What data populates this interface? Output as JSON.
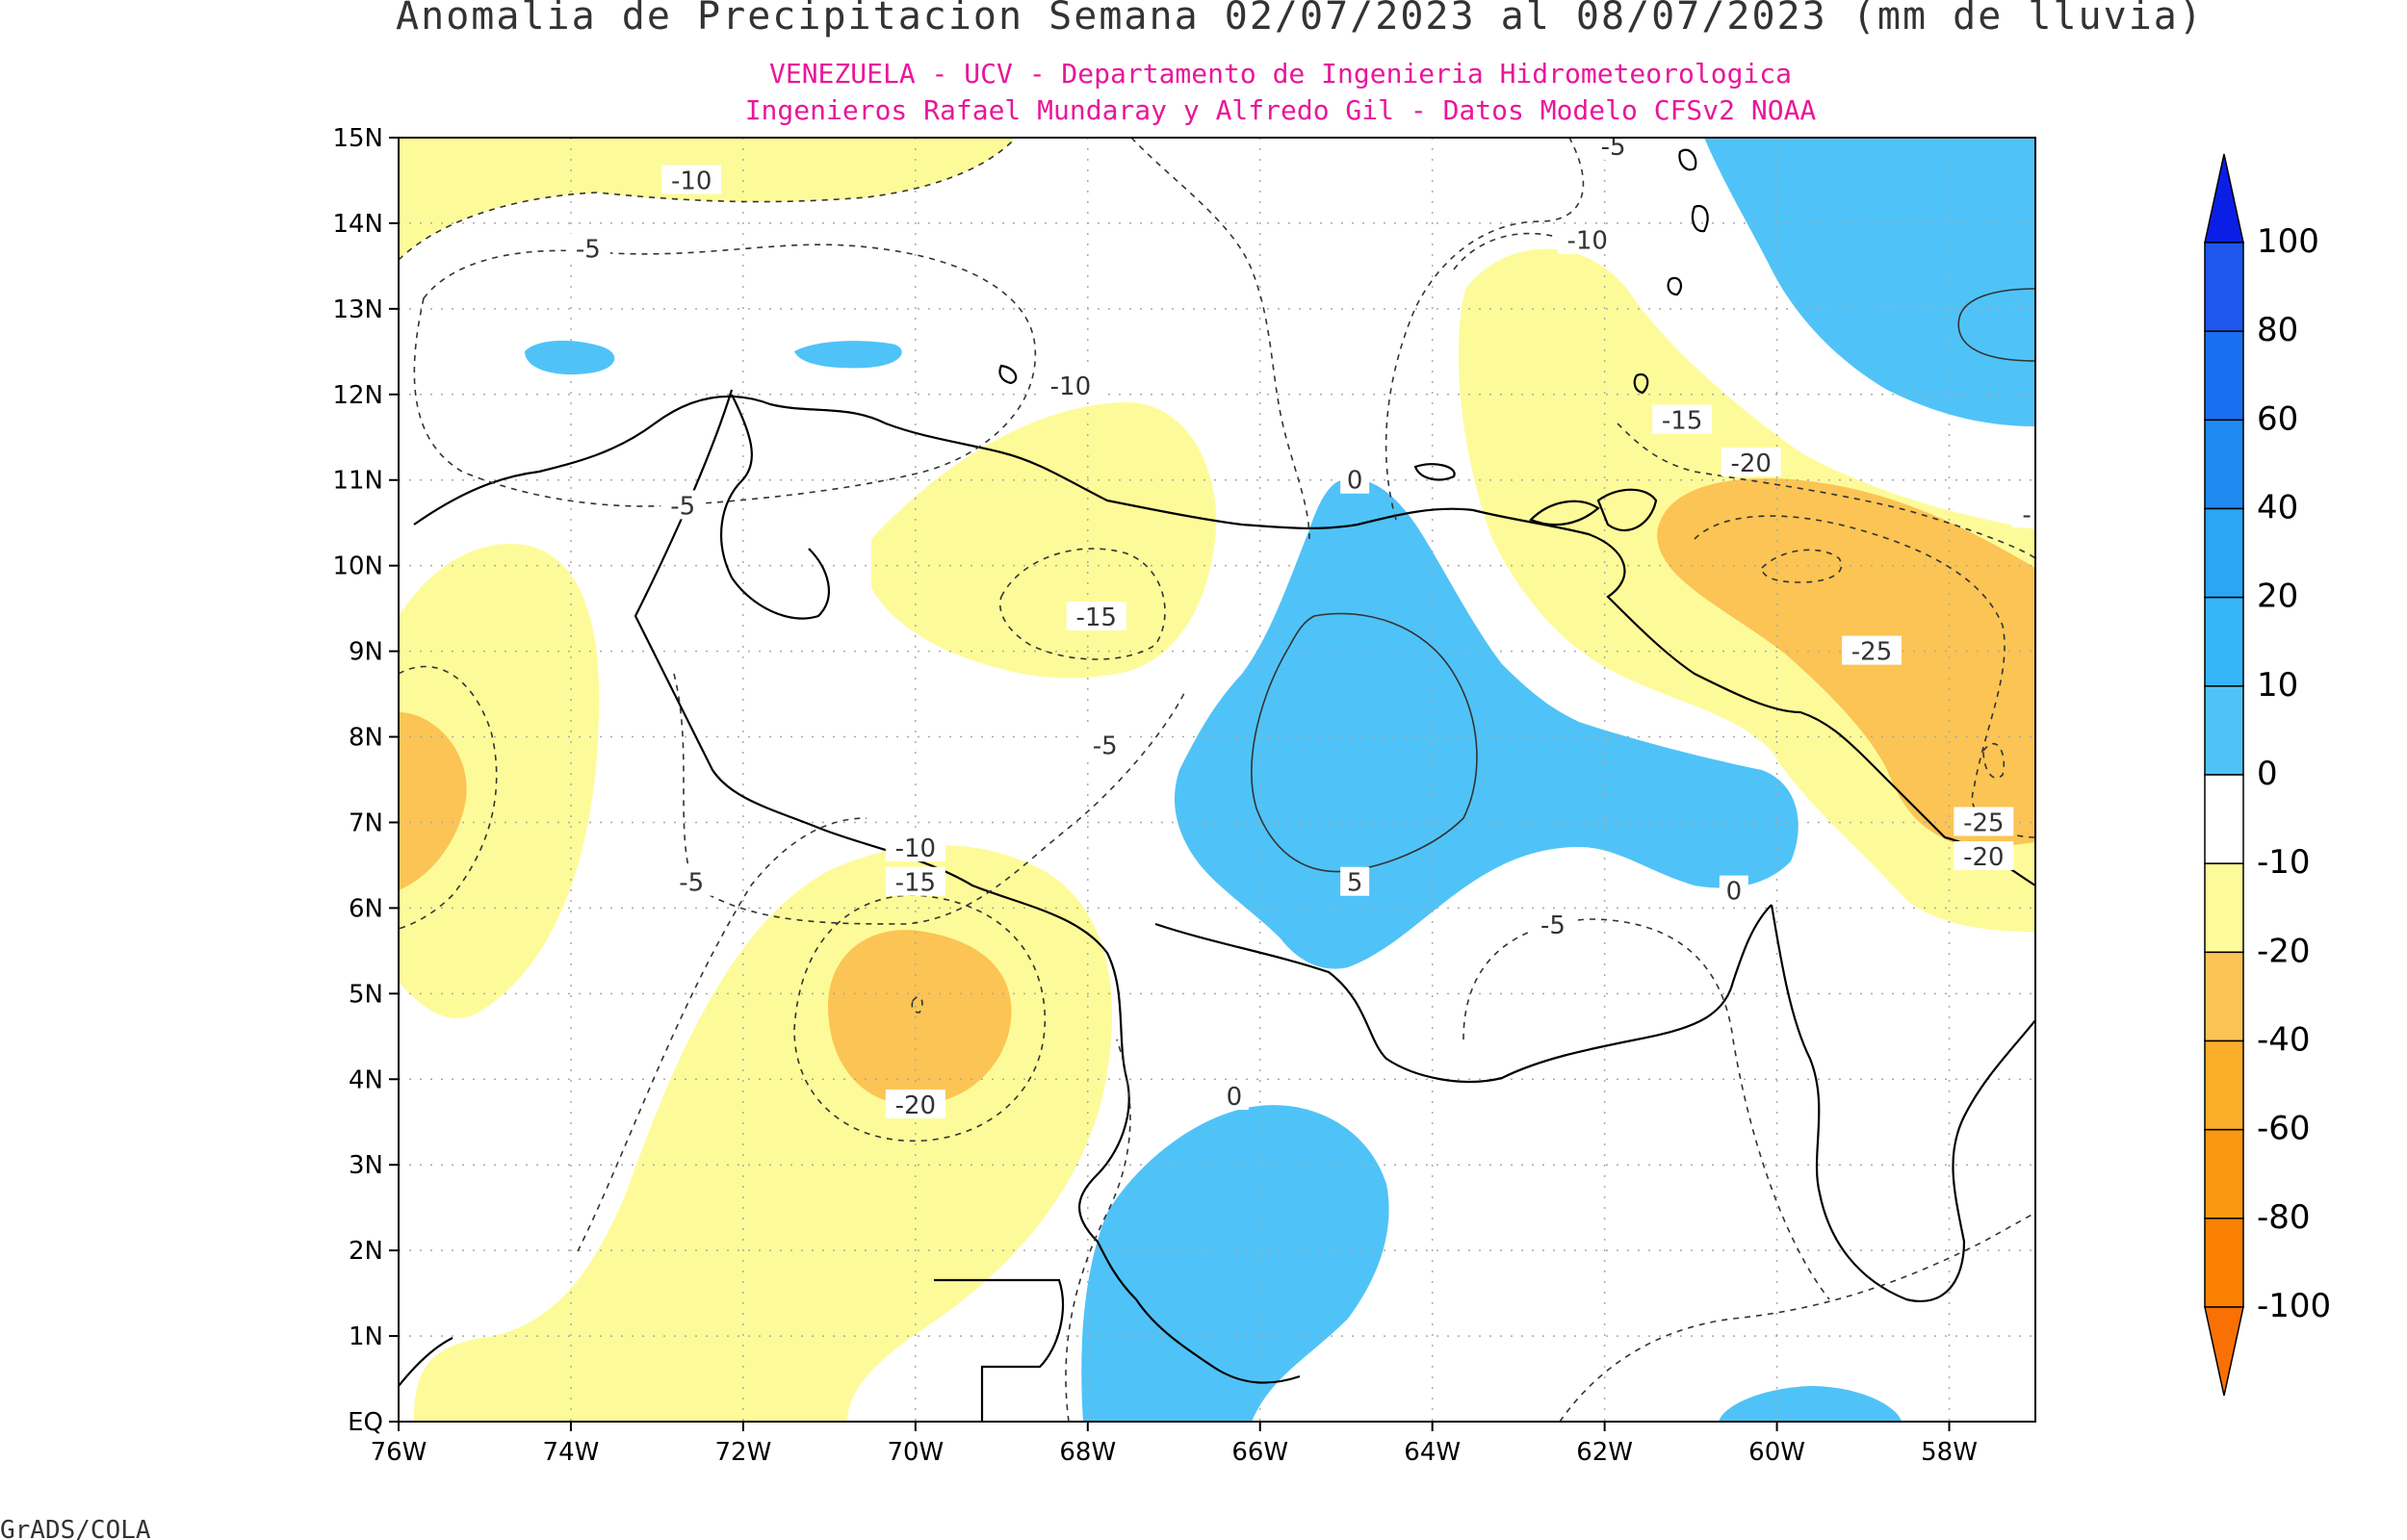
{
  "title": "Anomalia de Precipitacion Semana 02/07/2023 al 08/07/2023 (mm de lluvia)",
  "subtitle_line1": "VENEZUELA - UCV - Departamento de Ingenieria Hidrometeorologica",
  "subtitle_line2": "Ingenieros Rafael Mundaray y Alfredo Gil - Datos Modelo CFSv2 NOAA",
  "footer": "GrADS/COLA",
  "colors": {
    "title": "#333333",
    "subtitle": "#e8179a",
    "pos_0_10": "#4fc3f7",
    "neg_10_20": "#fdfb99",
    "neg_20_40": "#fbc454",
    "frame": "#000000"
  },
  "map": {
    "lon_range": [
      -76,
      -57
    ],
    "lat_range": [
      0,
      15
    ],
    "lon_ticks": [
      "76W",
      "74W",
      "72W",
      "70W",
      "68W",
      "66W",
      "64W",
      "62W",
      "60W",
      "58W"
    ],
    "lat_ticks": [
      "EQ",
      "1N",
      "2N",
      "3N",
      "4N",
      "5N",
      "6N",
      "7N",
      "8N",
      "9N",
      "10N",
      "11N",
      "12N",
      "13N",
      "14N",
      "15N"
    ],
    "contour_labels": [
      {
        "text": "-10",
        "lon": -72.6,
        "lat": 14.5
      },
      {
        "text": "-5",
        "lon": -73.8,
        "lat": 13.7
      },
      {
        "text": "-5",
        "lon": -72.7,
        "lat": 10.7
      },
      {
        "text": "-10",
        "lon": -68.2,
        "lat": 12.1
      },
      {
        "text": "-15",
        "lon": -67.9,
        "lat": 9.4
      },
      {
        "text": "-5",
        "lon": -67.8,
        "lat": 7.9
      },
      {
        "text": "-10",
        "lon": -70.0,
        "lat": 6.7
      },
      {
        "text": "-15",
        "lon": -70.0,
        "lat": 6.3
      },
      {
        "text": "-5",
        "lon": -72.6,
        "lat": 6.3
      },
      {
        "text": "-20",
        "lon": -70.0,
        "lat": 3.7
      },
      {
        "text": "0",
        "lon": -64.9,
        "lat": 11.0
      },
      {
        "text": "5",
        "lon": -64.9,
        "lat": 6.3
      },
      {
        "text": "0",
        "lon": -66.3,
        "lat": 3.8
      },
      {
        "text": "0",
        "lon": -60.5,
        "lat": 6.2
      },
      {
        "text": "-5",
        "lon": -62.6,
        "lat": 5.8
      },
      {
        "text": "-10",
        "lon": -62.2,
        "lat": 13.8
      },
      {
        "text": "-5",
        "lon": -61.9,
        "lat": 14.9
      },
      {
        "text": "-15",
        "lon": -61.1,
        "lat": 11.7
      },
      {
        "text": "-20",
        "lon": -60.3,
        "lat": 11.2
      },
      {
        "text": "-25",
        "lon": -58.9,
        "lat": 9.0
      },
      {
        "text": "-25",
        "lon": -57.6,
        "lat": 7.0
      },
      {
        "text": "-20",
        "lon": -57.6,
        "lat": 6.6
      },
      {
        "text": "-",
        "lon": -57.1,
        "lat": 10.6
      }
    ]
  },
  "colorbar": {
    "labels": [
      "100",
      "80",
      "60",
      "40",
      "20",
      "10",
      "0",
      "-10",
      "-20",
      "-40",
      "-60",
      "-80",
      "-100"
    ],
    "colors": [
      "#0a1ee6",
      "#1e56ee",
      "#1a6ff0",
      "#1e8af2",
      "#2aa6f5",
      "#35b6f8",
      "#4fc3f7",
      "#ffffff",
      "#fdfb99",
      "#fbc454",
      "#fbae2a",
      "#fb9812",
      "#fb8200",
      "#f97004"
    ]
  }
}
